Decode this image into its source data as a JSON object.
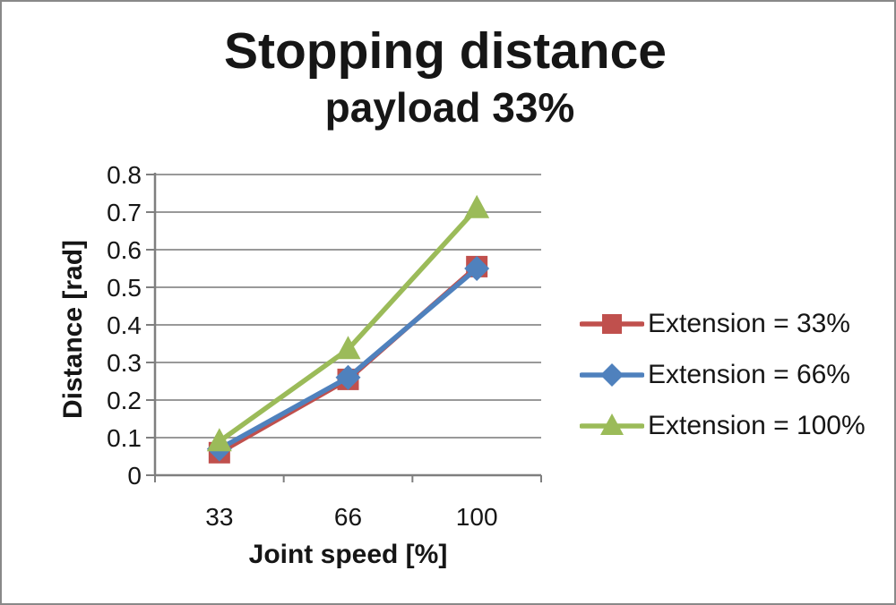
{
  "title": "Stopping distance",
  "subtitle": "payload 33%",
  "chart_data": {
    "type": "line",
    "title": "Stopping distance",
    "subtitle": "payload 33%",
    "xlabel": "Joint speed [%]",
    "ylabel": "Distance [rad]",
    "categories": [
      "33",
      "66",
      "100"
    ],
    "series": [
      {
        "name": "Extension = 33%",
        "values": [
          0.06,
          0.255,
          0.555
        ],
        "color": "#C0504D",
        "marker": "square"
      },
      {
        "name": "Extension = 66%",
        "values": [
          0.07,
          0.26,
          0.55
        ],
        "color": "#4F81BD",
        "marker": "diamond"
      },
      {
        "name": "Extension = 100%",
        "values": [
          0.09,
          0.335,
          0.71
        ],
        "color": "#9BBB59",
        "marker": "triangle"
      }
    ],
    "ylim": [
      0,
      0.8
    ],
    "y_ticks": [
      "0",
      "0.1",
      "0.2",
      "0.3",
      "0.4",
      "0.5",
      "0.6",
      "0.7",
      "0.8"
    ],
    "grid": true,
    "legend_position": "right",
    "gridline_color": "#999999",
    "axis_color": "#7f7f7f",
    "line_width": 5.5
  }
}
